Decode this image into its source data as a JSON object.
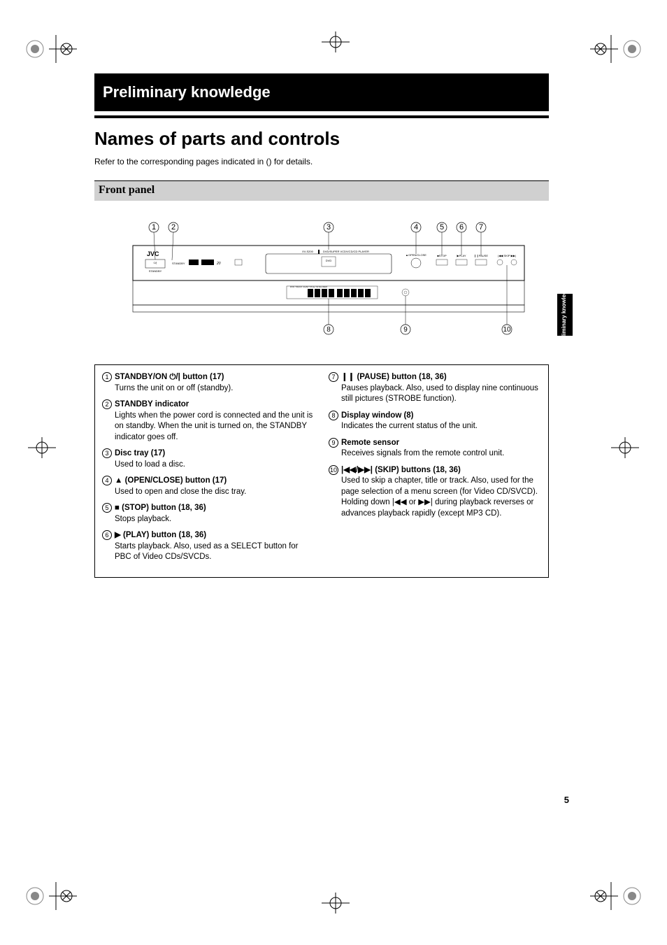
{
  "page_number": "5",
  "chapter_title": "Preliminary knowledge",
  "section_title": "Names of parts and controls",
  "intro_text": "Refer to the corresponding pages indicated in () for details.",
  "subsection_title": "Front panel",
  "side_tab": "Preliminary knowledge",
  "diagram": {
    "brand": "JVC",
    "model_text": "XV-S200",
    "device_text": "DVD/SUPER VCD/VCD/CD PLAYER",
    "btn_labels": {
      "standby": "STANDBY",
      "open_close": "OPEN/CLOSE",
      "stop": "STOP",
      "play": "PLAY",
      "pause": "PAUSE",
      "skip": "SKIP"
    },
    "callouts": [
      "1",
      "2",
      "3",
      "4",
      "5",
      "6",
      "7",
      "8",
      "9",
      "10"
    ]
  },
  "items_left": [
    {
      "num": "1",
      "title_prefix": "STANDBY/ON ",
      "icon": "⏻/|",
      "title_suffix": " button (17)",
      "desc": "Turns the unit on or off (standby)."
    },
    {
      "num": "2",
      "title_prefix": "STANDBY indicator",
      "icon": "",
      "title_suffix": "",
      "desc": "Lights when the power cord is connected and the unit is on standby. When the unit is turned on, the STANDBY indicator goes off."
    },
    {
      "num": "3",
      "title_prefix": "Disc tray (17)",
      "icon": "",
      "title_suffix": "",
      "desc": "Used to load a disc."
    },
    {
      "num": "4",
      "title_prefix": "",
      "icon": "▲",
      "title_suffix": " (OPEN/CLOSE) button (17)",
      "desc": "Used to open and close the disc tray."
    },
    {
      "num": "5",
      "title_prefix": "",
      "icon": "■",
      "title_suffix": " (STOP) button (18, 36)",
      "desc": "Stops playback."
    },
    {
      "num": "6",
      "title_prefix": "",
      "icon": "▶",
      "title_suffix": " (PLAY) button (18, 36)",
      "desc": "Starts playback. Also, used as a SELECT button for PBC of Video CDs/SVCDs."
    }
  ],
  "items_right": [
    {
      "num": "7",
      "title_prefix": "",
      "icon": "❙❙",
      "title_suffix": " (PAUSE) button (18, 36)",
      "desc": "Pauses playback. Also, used to display nine continuous still pictures (STROBE function)."
    },
    {
      "num": "8",
      "title_prefix": "Display window (8)",
      "icon": "",
      "title_suffix": "",
      "desc": "Indicates the current status of the unit."
    },
    {
      "num": "9",
      "title_prefix": "Remote sensor",
      "icon": "",
      "title_suffix": "",
      "desc": "Receives signals from the remote control unit."
    },
    {
      "num": "10",
      "title_prefix": "",
      "icon": "|◀◀/▶▶|",
      "title_suffix": " (SKIP) buttons (18, 36)",
      "desc_parts": [
        "Used to skip a chapter, title or track. Also, used for the page selection of a menu screen (for Video CD/SVCD). Holding down ",
        "|◀◀",
        " or ",
        "▶▶|",
        " during playback reverses or advances playback rapidly (except MP3 CD)."
      ]
    }
  ],
  "colors": {
    "black": "#000000",
    "gray_bar": "#d0d0d0",
    "white": "#ffffff"
  }
}
